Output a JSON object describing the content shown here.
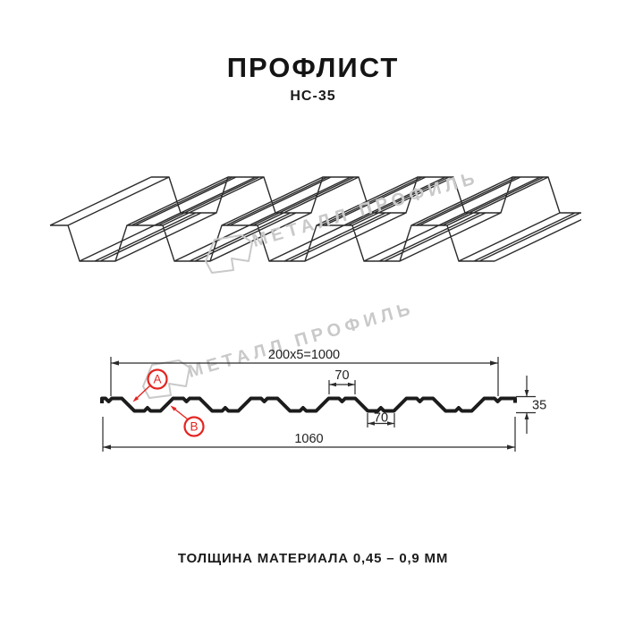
{
  "colors": {
    "red": "#e42420",
    "watermark": "#c9c9c9",
    "profile_line": "#1c1c1c",
    "thin_line": "#2b2b2b"
  },
  "header": {
    "title": "ПРОФЛИСТ",
    "subtitle": "НС-35"
  },
  "watermark": {
    "text": "МЕТАЛЛ ПРОФИЛЬ"
  },
  "section": {
    "dim_top": "200x5=1000",
    "dim_flange": "70",
    "dim_trough": "70",
    "dim_height": "35",
    "dim_width": "1060",
    "marker_a": "A",
    "marker_b": "B"
  },
  "footer": {
    "text": "ТОЛЩИНА МАТЕРИАЛА 0,45 – 0,9 ММ"
  }
}
